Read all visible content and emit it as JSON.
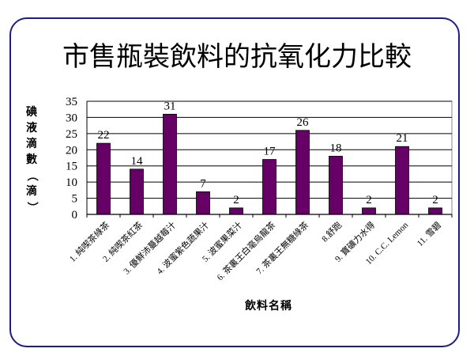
{
  "chart_data": {
    "type": "bar",
    "title": "市售瓶裝飲料的抗氧化力比較",
    "xlabel": "飲料名稱",
    "ylabel": "碘液滴數（滴）",
    "categories": [
      "1. 純喫茶綠茶",
      "2. 純喫茶紅茶",
      "3. 優鮮沛蔓越莓汁",
      "4. 波蜜紫色蔬果汁",
      "5. 波蜜果菜汁",
      "6. 茶裏王白毫烏龍茶",
      "7. 茶裏王無糖綠茶",
      "8.舒跑",
      "9. 寶礦力水得",
      "10. C.C. Lemon",
      "11. 雪碧"
    ],
    "values": [
      22,
      14,
      31,
      7,
      2,
      17,
      26,
      18,
      2,
      21,
      2
    ],
    "ylim": [
      0,
      35
    ],
    "yticks": [
      0,
      5,
      10,
      15,
      20,
      25,
      30,
      35
    ],
    "grid": true,
    "legend": "none",
    "colors": {
      "bar": "#660066",
      "frame": "#1c1c8a"
    }
  }
}
